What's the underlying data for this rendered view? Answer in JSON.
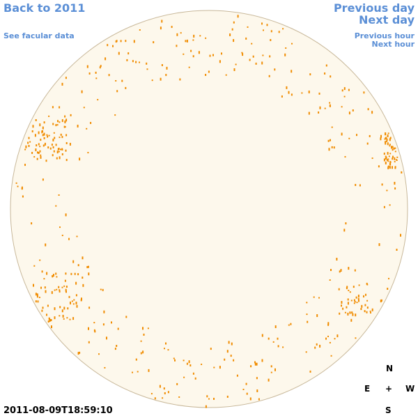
{
  "nav": {
    "back": "Back to 2011",
    "see_facular": "See facular data",
    "previous_day": "Previous day",
    "next_day": "Next day",
    "previous_hour": "Previous hour",
    "next_hour": "Next hour"
  },
  "timestamp": "2011-08-09T18:59:10",
  "compass": {
    "north": "N",
    "east": "E",
    "center": "+",
    "west": "W",
    "south": "S"
  }
}
